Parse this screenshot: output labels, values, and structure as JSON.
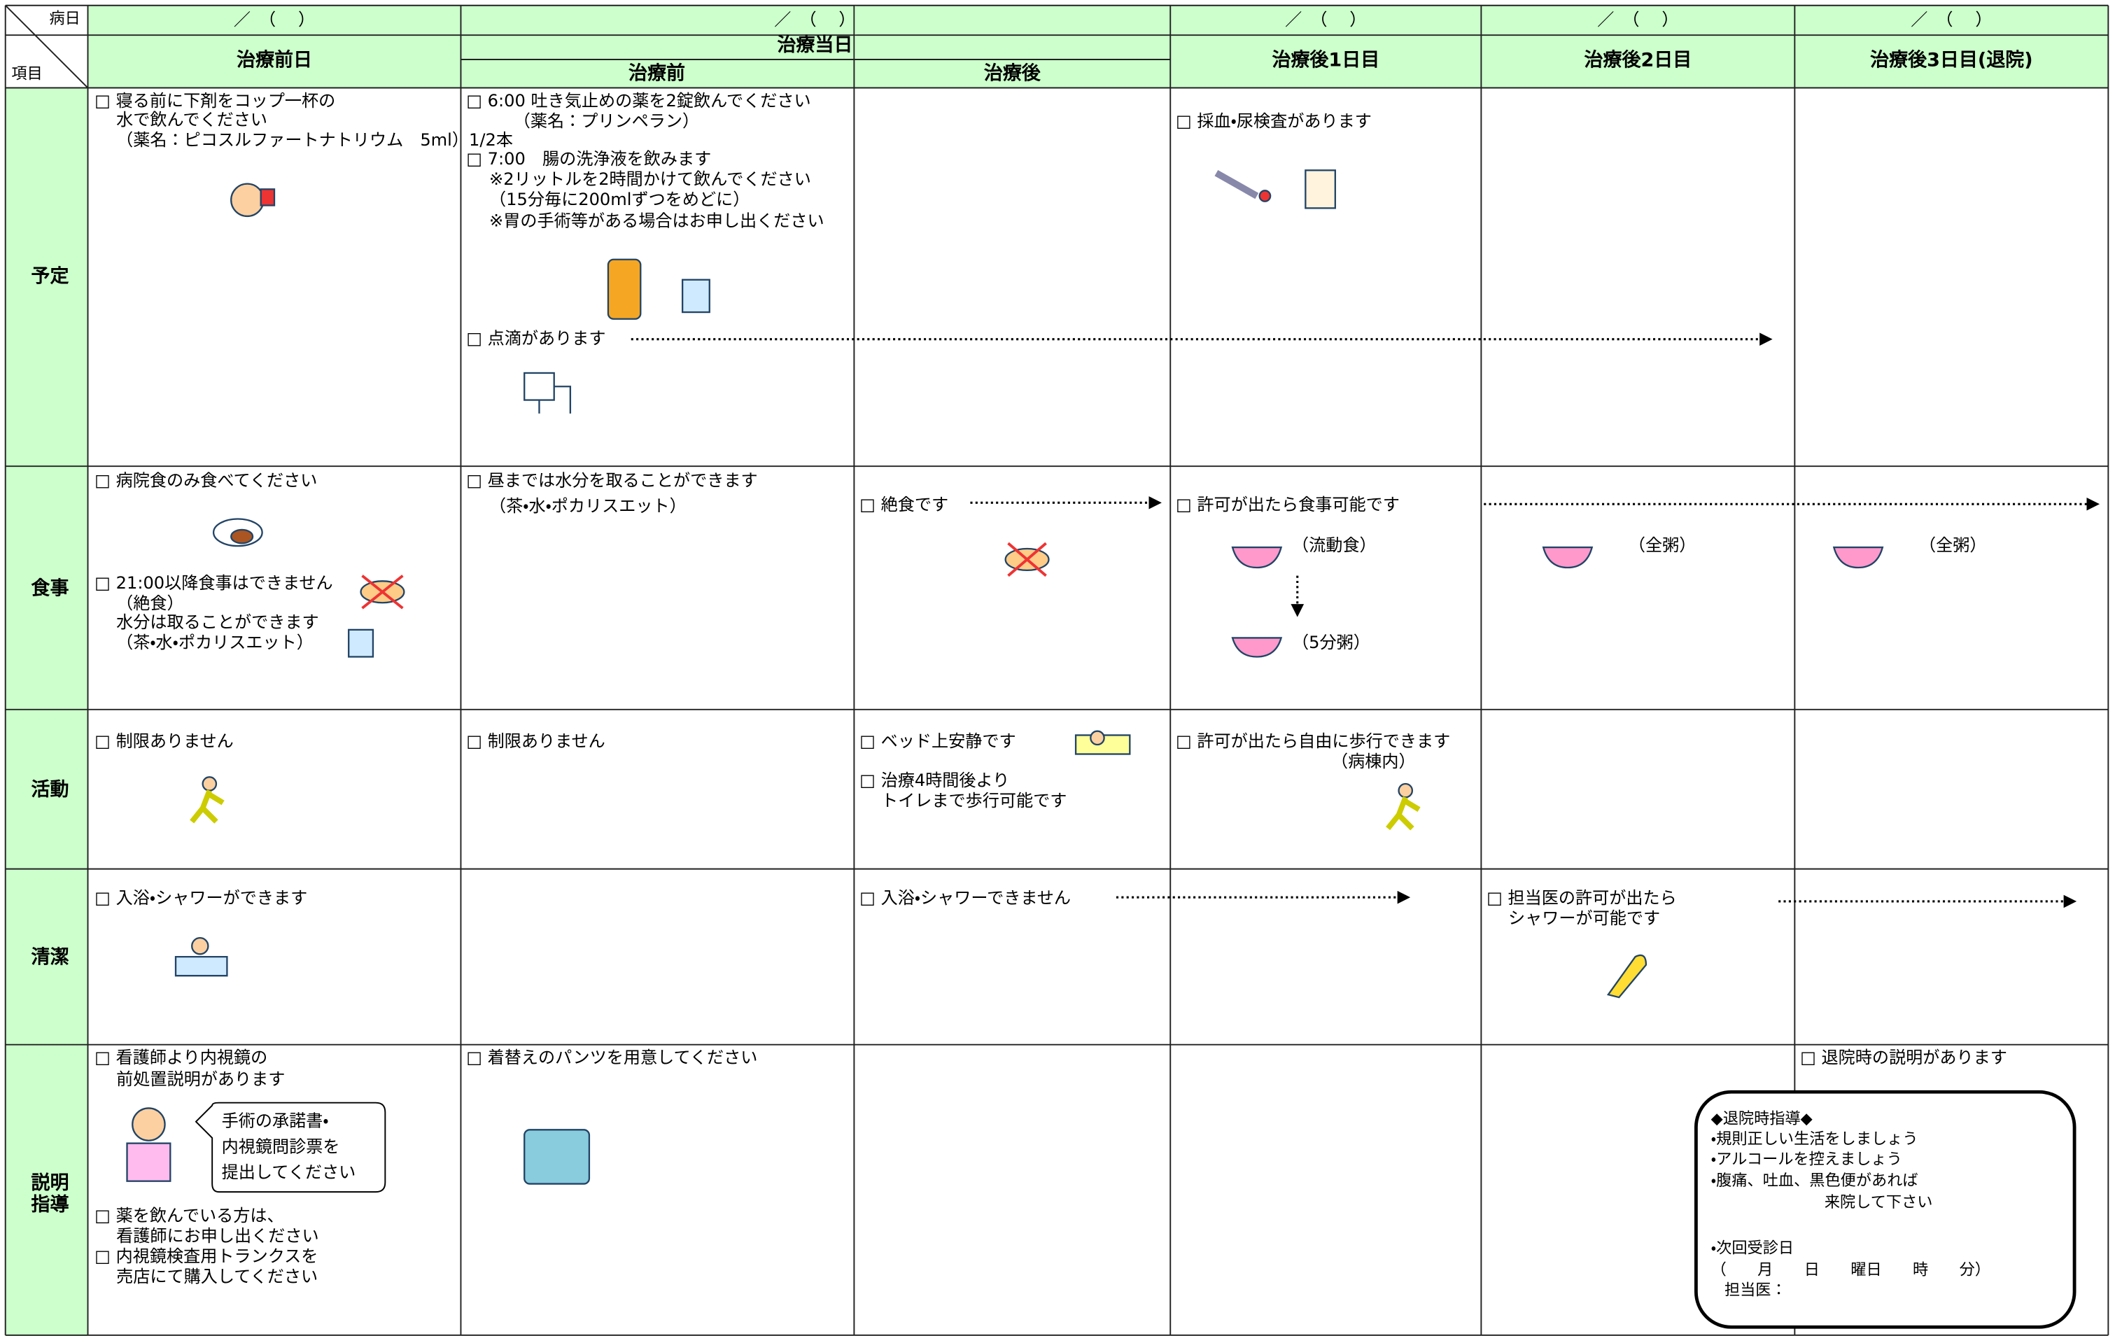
{
  "corner": {
    "top": "病日",
    "bottom": "項目"
  },
  "dates": [
    "／　（　 ）",
    "／　（　 ）",
    "／　（　 ）",
    "／　（　 ）",
    "／　（　 ）"
  ],
  "columns": [
    "治療前日",
    "治療当日",
    "治療前",
    "治療後",
    "治療後1日目",
    "治療後2日目",
    "治療後3日目(退院)"
  ],
  "rows": [
    {
      "label": [
        "予定"
      ],
      "cells": [
        [
          "□ 寝る前に下剤をコップ一杯の",
          "水で飲んでください",
          "（薬名：ピコスルファートナトリウム　5ml）1/2本"
        ],
        [
          "□ 6:00 吐き気止めの薬を2錠飲んでください",
          "（薬名：プリンペラン）",
          "□ 7:00　腸の洗浄液を飲みます",
          "※2リットルを2時間かけて飲んでください",
          "（15分毎に200mlずつをめどに）",
          "※胃の手術等がある場合はお申し出ください",
          "□ 点滴があります"
        ],
        [],
        [
          "□ 採血・尿検査があります"
        ],
        [],
        []
      ]
    },
    {
      "label": [
        "食事"
      ],
      "cells": [
        [
          "□ 病院食のみ食べてください",
          "□ 21:00以降食事はできません",
          "（絶食）",
          "水分は取ることができます",
          "（茶・水・ポカリスエット）"
        ],
        [
          "□ 昼までは水分を取ることができます",
          "（茶・水・ポカリスエット）"
        ],
        [
          "□ 絶食です"
        ],
        [
          "□ 許可が出たら食事可能です",
          "（流動食）",
          "（5分粥）"
        ],
        [
          "（全粥）"
        ],
        [
          "（全粥）"
        ]
      ]
    },
    {
      "label": [
        "活動"
      ],
      "cells": [
        [
          "□ 制限ありません"
        ],
        [
          "□ 制限ありません"
        ],
        [
          "□ ベッド上安静です",
          "□ 治療4時間後より",
          "トイレまで歩行可能です"
        ],
        [
          "□ 許可が出たら自由に歩行できます",
          "（病棟内）"
        ],
        [],
        []
      ]
    },
    {
      "label": [
        "清潔"
      ],
      "cells": [
        [
          "□ 入浴・シャワーができます"
        ],
        [],
        [
          "□ 入浴・シャワーできません"
        ],
        [],
        [
          "□ 担当医の許可が出たら",
          "シャワーが可能です"
        ],
        []
      ]
    },
    {
      "label": [
        "説明",
        "指導"
      ],
      "cells": [
        [
          "□ 看護師より内視鏡の",
          "前処置説明があります",
          "□ 薬を飲んでいる方は、",
          "看護師にお申し出ください",
          "□ 内視鏡検査用トランクスを",
          "売店にて購入してください"
        ],
        [
          "□ 着替えのパンツを用意してください"
        ],
        [],
        [],
        [],
        [
          "□ 退院時の説明があります"
        ]
      ],
      "speech": [
        "手術の承諾書・",
        "内視鏡問診票を",
        "提出してください"
      ],
      "box": [
        "◆退院時指導◆",
        "・規則正しい生活をしましょう",
        "・アルコールを控えましょう",
        "・腹痛、吐血、黒色便があれば",
        "来院して下さい",
        "・次回受診日",
        "（　　月　　日　　曜日　　時　　分）",
        "担当医："
      ]
    }
  ]
}
